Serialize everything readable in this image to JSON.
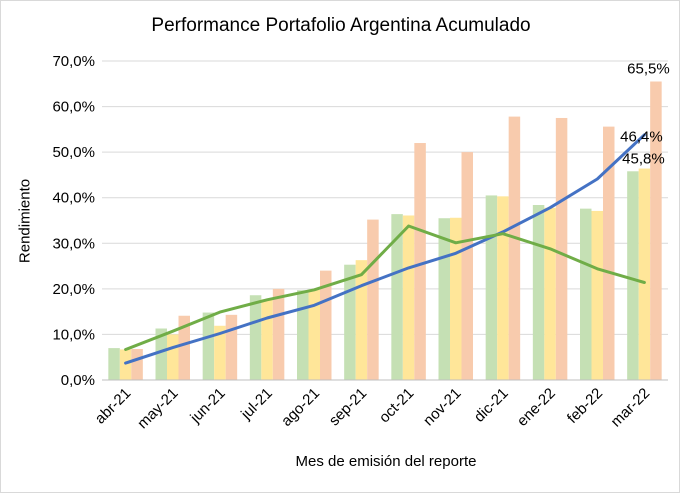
{
  "chart_data": {
    "type": "bar",
    "title": "Performance Portafolio Argentina Acumulado",
    "xlabel": "Mes de emisión del reporte",
    "ylabel": "Rendimiento",
    "ylim": [
      0,
      70
    ],
    "yticks": [
      "0,0%",
      "10,0%",
      "20,0%",
      "30,0%",
      "40,0%",
      "50,0%",
      "60,0%",
      "70,0%"
    ],
    "grid": true,
    "categories": [
      "abr-21",
      "may-21",
      "jun-21",
      "jul-21",
      "ago-21",
      "sep-21",
      "oct-21",
      "nov-21",
      "dic-21",
      "ene-22",
      "feb-22",
      "mar-22"
    ],
    "bar_series": [
      {
        "color": "#c5e0b4",
        "values": [
          7.0,
          11.3,
          14.8,
          18.6,
          19.7,
          25.3,
          36.4,
          35.5,
          40.5,
          38.4,
          37.6,
          45.8
        ]
      },
      {
        "color": "#ffe699",
        "values": [
          6.7,
          10.0,
          11.9,
          17.7,
          19.8,
          26.3,
          36.1,
          35.6,
          40.3,
          37.8,
          37.1,
          46.4
        ]
      },
      {
        "color": "#f8cbad",
        "values": [
          6.8,
          14.1,
          14.3,
          20.0,
          24.0,
          35.2,
          52.0,
          50.0,
          57.8,
          57.5,
          55.6,
          65.5
        ]
      }
    ],
    "line_series": [
      {
        "color": "#4472c4",
        "values": [
          3.7,
          7.1,
          10.2,
          13.6,
          16.4,
          20.7,
          24.6,
          27.8,
          32.5,
          37.8,
          44.1,
          53.8
        ]
      },
      {
        "color": "#70ad47",
        "values": [
          6.7,
          10.7,
          14.9,
          17.6,
          19.8,
          23.1,
          33.8,
          30.1,
          32.1,
          28.8,
          24.4,
          21.4
        ]
      }
    ],
    "data_labels": [
      "65,5%",
      "46,4%",
      "45,8%"
    ]
  }
}
